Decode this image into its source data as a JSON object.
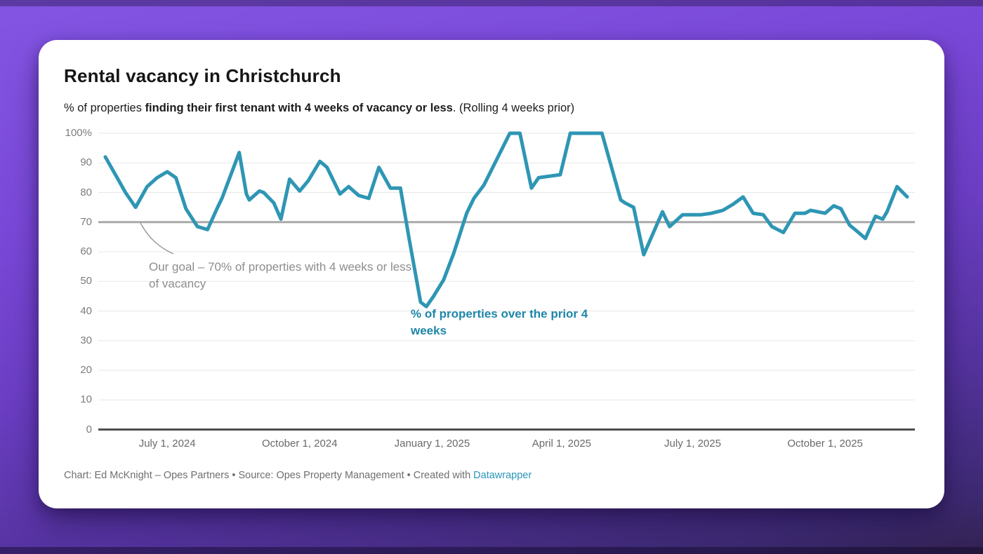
{
  "header": {
    "title": "Rental vacancy in Christchurch",
    "subtitle_part1": "% of properties ",
    "subtitle_part2": "finding their first tenant with 4 weeks of vacancy or less",
    "subtitle_part3": ". (Rolling 4 weeks prior)"
  },
  "annotations": {
    "goal": "Our goal – 70% of properties with 4 weeks or less of vacancy",
    "series_label": "% of properties over the prior 4 weeks"
  },
  "footer": {
    "credit": "Chart: Ed McKnight – Opes Partners • Source: Opes Property Management • Created with ",
    "link_label": "Datawrapper"
  },
  "chart_data": {
    "type": "line",
    "title": "Rental vacancy in Christchurch",
    "series_name": "% of properties finding their first tenant with 4 weeks of vacancy or less (rolling 4 weeks prior)",
    "unit": "%",
    "ylim": [
      0,
      100
    ],
    "grid": "horizontal",
    "goal_line": 70,
    "line_color": "#2e96b4",
    "x_domain": [
      "2024-05-19",
      "2025-11-27"
    ],
    "y_ticks": [
      {
        "value": 100,
        "label": "100%"
      },
      {
        "value": 90,
        "label": "90"
      },
      {
        "value": 80,
        "label": "80"
      },
      {
        "value": 70,
        "label": "70"
      },
      {
        "value": 60,
        "label": "60"
      },
      {
        "value": 50,
        "label": "50"
      },
      {
        "value": 40,
        "label": "40"
      },
      {
        "value": 30,
        "label": "30"
      },
      {
        "value": 20,
        "label": "20"
      },
      {
        "value": 10,
        "label": "10"
      },
      {
        "value": 0,
        "label": "0"
      }
    ],
    "x_ticks": [
      {
        "date": "2024-07-01",
        "label": "July 1, 2024"
      },
      {
        "date": "2024-10-01",
        "label": "October 1, 2024"
      },
      {
        "date": "2025-01-01",
        "label": "January 1, 2025"
      },
      {
        "date": "2025-04-01",
        "label": "April 1, 2025"
      },
      {
        "date": "2025-07-01",
        "label": "July 1, 2025"
      },
      {
        "date": "2025-10-01",
        "label": "October 1, 2025"
      }
    ],
    "points": [
      [
        "2024-05-19",
        92
      ],
      [
        "2024-05-26",
        86
      ],
      [
        "2024-06-02",
        80
      ],
      [
        "2024-06-09",
        75
      ],
      [
        "2024-06-17",
        82
      ],
      [
        "2024-06-24",
        85
      ],
      [
        "2024-07-01",
        87
      ],
      [
        "2024-07-07",
        85
      ],
      [
        "2024-07-14",
        74.5
      ],
      [
        "2024-07-22",
        68.5
      ],
      [
        "2024-07-29",
        67.5
      ],
      [
        "2024-08-05",
        75
      ],
      [
        "2024-08-08",
        78
      ],
      [
        "2024-08-20",
        93.5
      ],
      [
        "2024-08-25",
        79.5
      ],
      [
        "2024-08-27",
        77.5
      ],
      [
        "2024-09-03",
        80.5
      ],
      [
        "2024-09-06",
        80
      ],
      [
        "2024-09-13",
        76.5
      ],
      [
        "2024-09-18",
        71
      ],
      [
        "2024-09-24",
        84.5
      ],
      [
        "2024-10-01",
        80.5
      ],
      [
        "2024-10-07",
        84
      ],
      [
        "2024-10-15",
        90.5
      ],
      [
        "2024-10-20",
        88.5
      ],
      [
        "2024-10-29",
        79.5
      ],
      [
        "2024-11-04",
        82
      ],
      [
        "2024-11-11",
        79
      ],
      [
        "2024-11-18",
        78
      ],
      [
        "2024-11-25",
        88.5
      ],
      [
        "2024-12-03",
        81.5
      ],
      [
        "2024-12-10",
        81.5
      ],
      [
        "2024-12-16",
        64.5
      ],
      [
        "2024-12-24",
        43
      ],
      [
        "2024-12-28",
        41.5
      ],
      [
        "2025-01-02",
        45
      ],
      [
        "2025-01-09",
        50.5
      ],
      [
        "2025-01-16",
        59.5
      ],
      [
        "2025-01-25",
        73
      ],
      [
        "2025-01-30",
        78
      ],
      [
        "2025-02-06",
        82.5
      ],
      [
        "2025-02-24",
        100
      ],
      [
        "2025-03-03",
        100
      ],
      [
        "2025-03-11",
        81.5
      ],
      [
        "2025-03-16",
        85
      ],
      [
        "2025-03-31",
        86
      ],
      [
        "2025-04-07",
        100
      ],
      [
        "2025-04-29",
        100
      ],
      [
        "2025-05-12",
        77.5
      ],
      [
        "2025-05-15",
        76.5
      ],
      [
        "2025-05-21",
        75
      ],
      [
        "2025-05-28",
        59
      ],
      [
        "2025-06-10",
        73.5
      ],
      [
        "2025-06-15",
        68.5
      ],
      [
        "2025-06-24",
        72.5
      ],
      [
        "2025-07-07",
        72.5
      ],
      [
        "2025-07-14",
        73
      ],
      [
        "2025-07-22",
        74
      ],
      [
        "2025-07-29",
        76
      ],
      [
        "2025-08-05",
        78.5
      ],
      [
        "2025-08-12",
        73
      ],
      [
        "2025-08-19",
        72.5
      ],
      [
        "2025-08-25",
        68.5
      ],
      [
        "2025-08-29",
        67.5
      ],
      [
        "2025-09-02",
        66.5
      ],
      [
        "2025-09-10",
        73
      ],
      [
        "2025-09-17",
        73
      ],
      [
        "2025-09-21",
        74
      ],
      [
        "2025-10-01",
        73
      ],
      [
        "2025-10-07",
        75.5
      ],
      [
        "2025-10-12",
        74.5
      ],
      [
        "2025-10-18",
        69
      ],
      [
        "2025-10-23",
        67
      ],
      [
        "2025-10-29",
        64.5
      ],
      [
        "2025-11-05",
        72
      ],
      [
        "2025-11-10",
        71
      ],
      [
        "2025-11-13",
        73.5
      ],
      [
        "2025-11-20",
        82
      ],
      [
        "2025-11-27",
        78.5
      ]
    ]
  }
}
